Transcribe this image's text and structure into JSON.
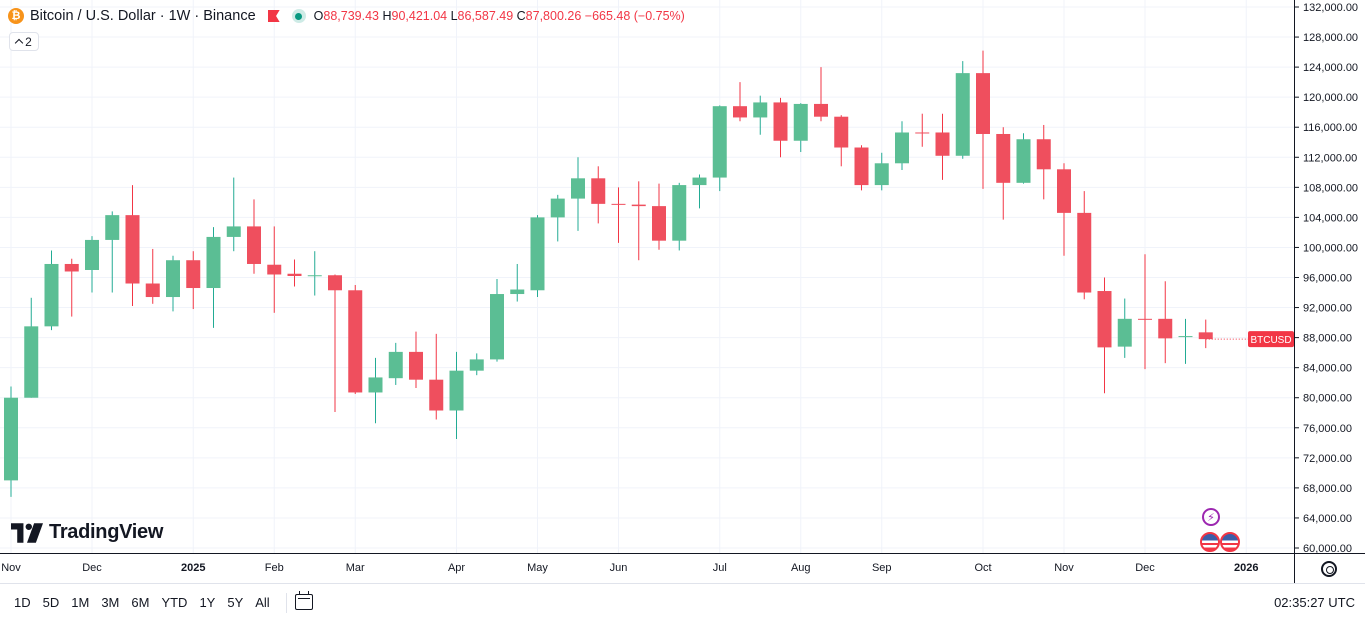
{
  "header": {
    "symbol_title": "Bitcoin / U.S. Dollar · 1W · Binance",
    "coin_badge": "₿",
    "ohlc": {
      "o_key": "O",
      "o_val": "88,739.43",
      "h_key": "H",
      "h_val": "90,421.04",
      "l_key": "L",
      "l_val": "86,587.49",
      "c_key": "C",
      "c_val": "87,800.26",
      "change": "−665.48 (−0.75%)"
    },
    "indicators_count": "2"
  },
  "logo": {
    "text": "TradingView",
    "icon": "tradingview-logo-icon"
  },
  "price_label": "BTCUSD",
  "bottom_bar": {
    "ranges": [
      "1D",
      "5D",
      "1M",
      "3M",
      "6M",
      "YTD",
      "1Y",
      "5Y",
      "All"
    ],
    "time": "02:35:27 UTC"
  },
  "events": {
    "bolt_glyph": "⚡"
  },
  "colors": {
    "up": "#22ab94",
    "up_fill": "#5bbe94",
    "down": "#f23645",
    "down_fill": "#ef4f5e",
    "grid": "#f0f3fa",
    "axis_text": "#131722"
  },
  "chart_data": {
    "type": "candlestick",
    "symbol": "BTCUSD",
    "interval": "1W",
    "exchange": "Binance",
    "ylim": [
      60000,
      132000
    ],
    "y_ticks": [
      60000,
      64000,
      68000,
      72000,
      76000,
      80000,
      84000,
      88000,
      92000,
      96000,
      100000,
      104000,
      108000,
      112000,
      116000,
      120000,
      124000,
      128000,
      132000
    ],
    "y_tick_labels": [
      "60,000.00",
      "64,000.00",
      "68,000.00",
      "72,000.00",
      "76,000.00",
      "80,000.00",
      "84,000.00",
      "88,000.00",
      "92,000.00",
      "96,000.00",
      "100,000.00",
      "104,000.00",
      "108,000.00",
      "112,000.00",
      "116,000.00",
      "120,000.00",
      "124,000.00",
      "128,000.00",
      "132,000.00"
    ],
    "x_labels": [
      {
        "label": "Nov",
        "bar": 0,
        "bold": false
      },
      {
        "label": "Dec",
        "bar": 4,
        "bold": false
      },
      {
        "label": "2025",
        "bar": 9,
        "bold": true
      },
      {
        "label": "Feb",
        "bar": 13,
        "bold": false
      },
      {
        "label": "Mar",
        "bar": 17,
        "bold": false
      },
      {
        "label": "Apr",
        "bar": 22,
        "bold": false
      },
      {
        "label": "May",
        "bar": 26,
        "bold": false
      },
      {
        "label": "Jun",
        "bar": 30,
        "bold": false
      },
      {
        "label": "Jul",
        "bar": 35,
        "bold": false
      },
      {
        "label": "Aug",
        "bar": 39,
        "bold": false
      },
      {
        "label": "Sep",
        "bar": 43,
        "bold": false
      },
      {
        "label": "Oct",
        "bar": 48,
        "bold": false
      },
      {
        "label": "Nov",
        "bar": 52,
        "bold": false
      },
      {
        "label": "Dec",
        "bar": 56,
        "bold": false
      },
      {
        "label": "2026",
        "bar": 61,
        "bold": true
      }
    ],
    "candles": [
      {
        "o": 69000,
        "h": 81500,
        "l": 66800,
        "c": 80000
      },
      {
        "o": 80000,
        "h": 93300,
        "l": 80000,
        "c": 89500
      },
      {
        "o": 89500,
        "h": 99600,
        "l": 89000,
        "c": 97800
      },
      {
        "o": 97800,
        "h": 98500,
        "l": 90800,
        "c": 96800
      },
      {
        "o": 97000,
        "h": 101500,
        "l": 94000,
        "c": 101000
      },
      {
        "o": 101000,
        "h": 104800,
        "l": 94000,
        "c": 104300
      },
      {
        "o": 104300,
        "h": 108300,
        "l": 92200,
        "c": 95200
      },
      {
        "o": 95200,
        "h": 99800,
        "l": 92500,
        "c": 93400
      },
      {
        "o": 93400,
        "h": 98900,
        "l": 91500,
        "c": 98300
      },
      {
        "o": 98300,
        "h": 99500,
        "l": 91800,
        "c": 94600
      },
      {
        "o": 94600,
        "h": 102700,
        "l": 89300,
        "c": 101400
      },
      {
        "o": 101400,
        "h": 109300,
        "l": 99500,
        "c": 102800
      },
      {
        "o": 102800,
        "h": 106400,
        "l": 96500,
        "c": 97800
      },
      {
        "o": 97700,
        "h": 102800,
        "l": 91300,
        "c": 96400
      },
      {
        "o": 96500,
        "h": 98400,
        "l": 94800,
        "c": 96200
      },
      {
        "o": 96200,
        "h": 99500,
        "l": 93600,
        "c": 96300
      },
      {
        "o": 96300,
        "h": 96400,
        "l": 78100,
        "c": 94300
      },
      {
        "o": 94300,
        "h": 95000,
        "l": 80500,
        "c": 80700
      },
      {
        "o": 80700,
        "h": 85300,
        "l": 76600,
        "c": 82700
      },
      {
        "o": 82600,
        "h": 87300,
        "l": 81700,
        "c": 86100
      },
      {
        "o": 86100,
        "h": 88800,
        "l": 81300,
        "c": 82400
      },
      {
        "o": 82400,
        "h": 88500,
        "l": 77100,
        "c": 78300
      },
      {
        "o": 78300,
        "h": 86100,
        "l": 74500,
        "c": 83600
      },
      {
        "o": 83600,
        "h": 85900,
        "l": 83000,
        "c": 85100
      },
      {
        "o": 85100,
        "h": 95800,
        "l": 84800,
        "c": 93800
      },
      {
        "o": 93800,
        "h": 97800,
        "l": 92800,
        "c": 94400
      },
      {
        "o": 94300,
        "h": 104300,
        "l": 93400,
        "c": 104000
      },
      {
        "o": 104000,
        "h": 107000,
        "l": 100800,
        "c": 106500
      },
      {
        "o": 106500,
        "h": 112000,
        "l": 102200,
        "c": 109200
      },
      {
        "o": 109200,
        "h": 110800,
        "l": 103200,
        "c": 105800
      },
      {
        "o": 105800,
        "h": 108000,
        "l": 100600,
        "c": 105700
      },
      {
        "o": 105700,
        "h": 108800,
        "l": 98300,
        "c": 105500
      },
      {
        "o": 105500,
        "h": 108500,
        "l": 99700,
        "c": 100900
      },
      {
        "o": 100900,
        "h": 108600,
        "l": 99600,
        "c": 108300
      },
      {
        "o": 108300,
        "h": 109700,
        "l": 105200,
        "c": 109300
      },
      {
        "o": 109300,
        "h": 118900,
        "l": 107500,
        "c": 118800
      },
      {
        "o": 118800,
        "h": 122000,
        "l": 116800,
        "c": 117300
      },
      {
        "o": 117300,
        "h": 120200,
        "l": 115000,
        "c": 119300
      },
      {
        "o": 119300,
        "h": 119900,
        "l": 112000,
        "c": 114200
      },
      {
        "o": 114200,
        "h": 119200,
        "l": 112700,
        "c": 119100
      },
      {
        "o": 119100,
        "h": 124000,
        "l": 116800,
        "c": 117400
      },
      {
        "o": 117400,
        "h": 117600,
        "l": 110800,
        "c": 113300
      },
      {
        "o": 113300,
        "h": 113600,
        "l": 107600,
        "c": 108300
      },
      {
        "o": 108300,
        "h": 112600,
        "l": 107600,
        "c": 111200
      },
      {
        "o": 111200,
        "h": 116800,
        "l": 110300,
        "c": 115300
      },
      {
        "o": 115300,
        "h": 117800,
        "l": 113400,
        "c": 115200
      },
      {
        "o": 115300,
        "h": 117800,
        "l": 109000,
        "c": 112200
      },
      {
        "o": 112200,
        "h": 124800,
        "l": 111800,
        "c": 123200
      },
      {
        "o": 123200,
        "h": 126200,
        "l": 107800,
        "c": 115100
      },
      {
        "o": 115100,
        "h": 116000,
        "l": 103700,
        "c": 108600
      },
      {
        "o": 108600,
        "h": 115200,
        "l": 108500,
        "c": 114400
      },
      {
        "o": 114400,
        "h": 116300,
        "l": 106400,
        "c": 110400
      },
      {
        "o": 110400,
        "h": 111200,
        "l": 98900,
        "c": 104600
      },
      {
        "o": 104600,
        "h": 107500,
        "l": 93100,
        "c": 94000
      },
      {
        "o": 94200,
        "h": 96000,
        "l": 80600,
        "c": 86700
      },
      {
        "o": 86800,
        "h": 93200,
        "l": 85300,
        "c": 90500
      },
      {
        "o": 90500,
        "h": 99100,
        "l": 83800,
        "c": 90400
      },
      {
        "o": 90500,
        "h": 95500,
        "l": 84600,
        "c": 87900
      },
      {
        "o": 88100,
        "h": 90500,
        "l": 84500,
        "c": 88200
      },
      {
        "o": 88700,
        "h": 90400,
        "l": 86600,
        "c": 87800
      }
    ],
    "last_price": 87800.26,
    "grid": true,
    "legend": "top-left"
  }
}
